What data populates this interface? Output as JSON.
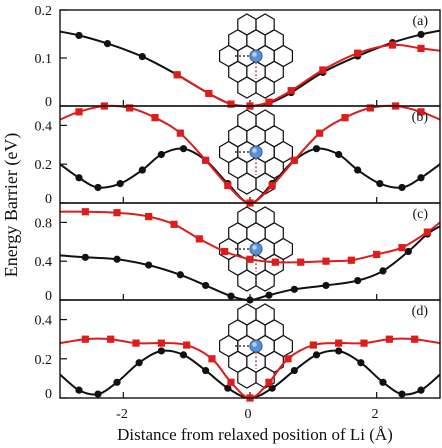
{
  "figure": {
    "ylabel": "Energy Barrier (eV)",
    "xlabel": "Distance from relaxed position of Li (Å)",
    "x_ticks": [
      "-2",
      "0",
      "2"
    ]
  },
  "chart_data": [
    {
      "type": "line",
      "panel_label": "(a)",
      "xlim": [
        -3,
        3
      ],
      "ylim": [
        0,
        0.2
      ],
      "y_ticks": [
        "0",
        "0.1",
        "0.2"
      ],
      "series": [
        {
          "color": "#111111",
          "marker": "circle",
          "x": [
            -3.0,
            -2.7,
            -2.25,
            -1.7,
            -1.15,
            -0.65,
            -0.3,
            0.0,
            0.3,
            0.65,
            1.15,
            1.7,
            2.25,
            2.7,
            3.0
          ],
          "y": [
            0.155,
            0.147,
            0.13,
            0.103,
            0.065,
            0.026,
            0.004,
            0.0,
            0.006,
            0.028,
            0.07,
            0.104,
            0.132,
            0.149,
            0.157
          ]
        },
        {
          "color": "#dd1c1c",
          "marker": "square",
          "x": [
            -1.15,
            -0.65,
            -0.3,
            0.0,
            0.3,
            0.65,
            1.15,
            1.7,
            2.25,
            2.7,
            3.0
          ],
          "y": [
            0.065,
            0.026,
            0.004,
            0.0,
            0.008,
            0.032,
            0.075,
            0.11,
            0.127,
            0.12,
            0.115
          ]
        }
      ]
    },
    {
      "type": "line",
      "panel_label": "(b)",
      "xlim": [
        -3,
        3
      ],
      "ylim": [
        0,
        0.5
      ],
      "y_ticks": [
        "0",
        "0.2",
        "0.4"
      ],
      "series": [
        {
          "color": "#111111",
          "marker": "circle",
          "x": [
            -3.0,
            -2.7,
            -2.4,
            -2.05,
            -1.7,
            -1.4,
            -1.05,
            -0.7,
            -0.35,
            0.0,
            0.35,
            0.7,
            1.05,
            1.4,
            1.7,
            2.05,
            2.4,
            2.7,
            3.0
          ],
          "y": [
            0.2,
            0.13,
            0.08,
            0.1,
            0.17,
            0.25,
            0.28,
            0.22,
            0.1,
            0.0,
            0.1,
            0.22,
            0.28,
            0.25,
            0.17,
            0.1,
            0.08,
            0.13,
            0.2
          ]
        },
        {
          "color": "#dd1c1c",
          "marker": "square",
          "x": [
            -3.0,
            -2.7,
            -2.3,
            -1.9,
            -1.5,
            -1.1,
            -0.7,
            -0.35,
            0.0,
            0.35,
            0.7,
            1.1,
            1.5,
            1.9,
            2.3,
            2.7,
            3.0
          ],
          "y": [
            0.43,
            0.47,
            0.5,
            0.49,
            0.44,
            0.36,
            0.22,
            0.09,
            0.0,
            0.09,
            0.22,
            0.36,
            0.44,
            0.49,
            0.5,
            0.47,
            0.43
          ]
        }
      ]
    },
    {
      "type": "line",
      "panel_label": "(c)",
      "xlim": [
        -3,
        3
      ],
      "ylim": [
        0,
        1.0
      ],
      "y_ticks": [
        "0",
        "0.4",
        "0.8"
      ],
      "series": [
        {
          "color": "#111111",
          "marker": "circle",
          "x": [
            -3.0,
            -2.6,
            -2.1,
            -1.6,
            -1.1,
            -0.7,
            -0.3,
            0.0,
            0.3,
            0.7,
            1.2,
            1.7,
            2.1,
            2.5,
            2.8,
            3.0
          ],
          "y": [
            0.46,
            0.44,
            0.42,
            0.36,
            0.26,
            0.15,
            0.04,
            0.0,
            0.05,
            0.11,
            0.15,
            0.2,
            0.3,
            0.5,
            0.68,
            0.76
          ]
        },
        {
          "color": "#dd1c1c",
          "marker": "square",
          "x": [
            -3.0,
            -2.6,
            -2.1,
            -1.6,
            -1.2,
            -0.8,
            -0.4,
            0.0,
            0.4,
            0.8,
            1.2,
            1.6,
            2.0,
            2.4,
            2.8,
            3.0
          ],
          "y": [
            0.91,
            0.91,
            0.9,
            0.86,
            0.78,
            0.63,
            0.5,
            0.42,
            0.39,
            0.39,
            0.4,
            0.41,
            0.47,
            0.54,
            0.7,
            0.8
          ]
        }
      ]
    },
    {
      "type": "line",
      "panel_label": "(d)",
      "xlim": [
        -3,
        3
      ],
      "ylim": [
        0,
        0.5
      ],
      "y_ticks": [
        "0",
        "0.2",
        "0.4"
      ],
      "series": [
        {
          "color": "#111111",
          "marker": "circle",
          "x": [
            -3.0,
            -2.7,
            -2.4,
            -2.1,
            -1.75,
            -1.4,
            -1.05,
            -0.7,
            -0.35,
            0.0,
            0.35,
            0.7,
            1.05,
            1.4,
            1.75,
            2.1,
            2.4,
            2.7,
            3.0
          ],
          "y": [
            0.12,
            0.04,
            0.02,
            0.08,
            0.18,
            0.24,
            0.22,
            0.14,
            0.05,
            0.0,
            0.05,
            0.14,
            0.22,
            0.24,
            0.18,
            0.08,
            0.02,
            0.04,
            0.12
          ]
        },
        {
          "color": "#dd1c1c",
          "marker": "square",
          "x": [
            -3.0,
            -2.6,
            -2.2,
            -1.8,
            -1.4,
            -1.0,
            -0.6,
            -0.3,
            0.0,
            0.3,
            0.6,
            1.0,
            1.4,
            1.8,
            2.2,
            2.6,
            3.0
          ],
          "y": [
            0.28,
            0.3,
            0.3,
            0.28,
            0.28,
            0.27,
            0.2,
            0.08,
            0.0,
            0.08,
            0.2,
            0.27,
            0.28,
            0.28,
            0.3,
            0.3,
            0.28
          ]
        }
      ]
    }
  ]
}
